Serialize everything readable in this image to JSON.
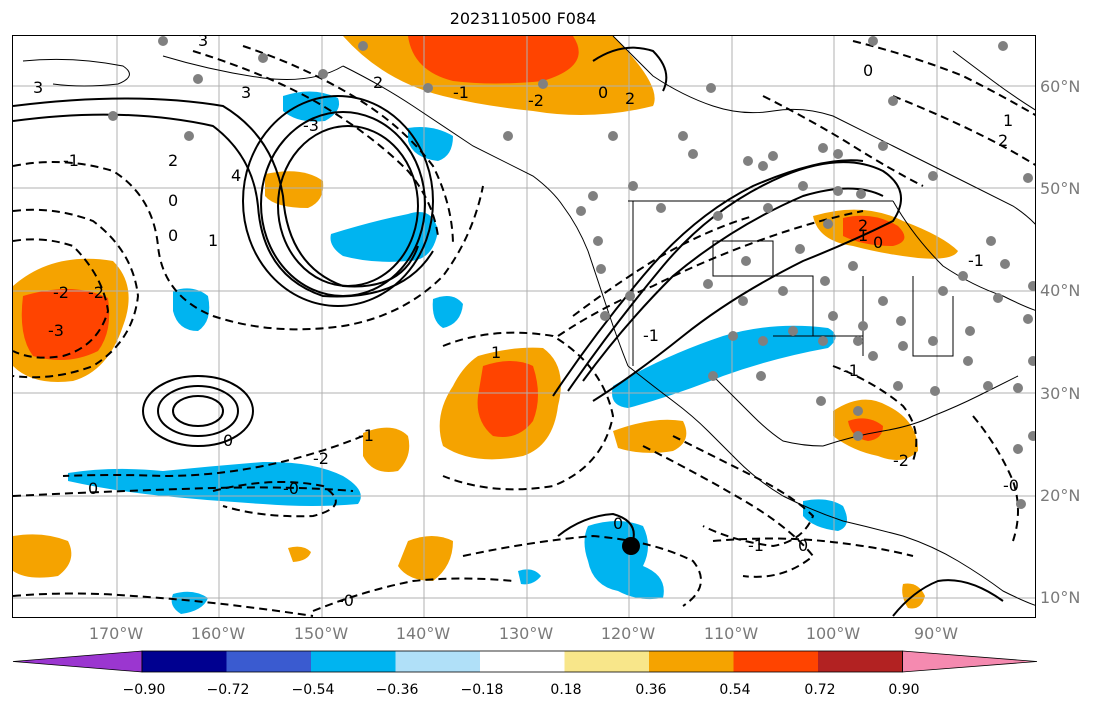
{
  "title": "2023110500 F084",
  "latitude_labels": [
    "60°N",
    "50°N",
    "40°N",
    "30°N",
    "20°N",
    "10°N"
  ],
  "longitude_labels": [
    "170°W",
    "160°W",
    "150°W",
    "140°W",
    "130°W",
    "120°W",
    "110°W",
    "100°W",
    "90°W"
  ],
  "colorbar": {
    "ticks": [
      "−0.90",
      "−0.72",
      "−0.54",
      "−0.36",
      "−0.18",
      "0.18",
      "0.36",
      "0.54",
      "0.72",
      "0.90"
    ],
    "colors": [
      "#9b36d0",
      "#000090",
      "#3a5bd0",
      "#00b4f0",
      "#b0e0f8",
      "#ffffff",
      "#f8e68a",
      "#f5a300",
      "#ff4400",
      "#b22222",
      "#f58ab0"
    ]
  },
  "contour_labels": [
    "3",
    "3",
    "3",
    "2",
    "2",
    "4",
    "0",
    "0",
    "1",
    "1",
    "-1",
    "-2",
    "-3",
    "-3",
    "-2",
    "-1",
    "-1",
    "-2",
    "2",
    "0",
    "0",
    "-0",
    "0",
    "-0",
    "-2",
    "-1",
    "0",
    "1",
    "2",
    "0",
    "-1",
    "-1",
    "0",
    "-0",
    "-2",
    "-1",
    "0",
    "1",
    "2"
  ]
}
